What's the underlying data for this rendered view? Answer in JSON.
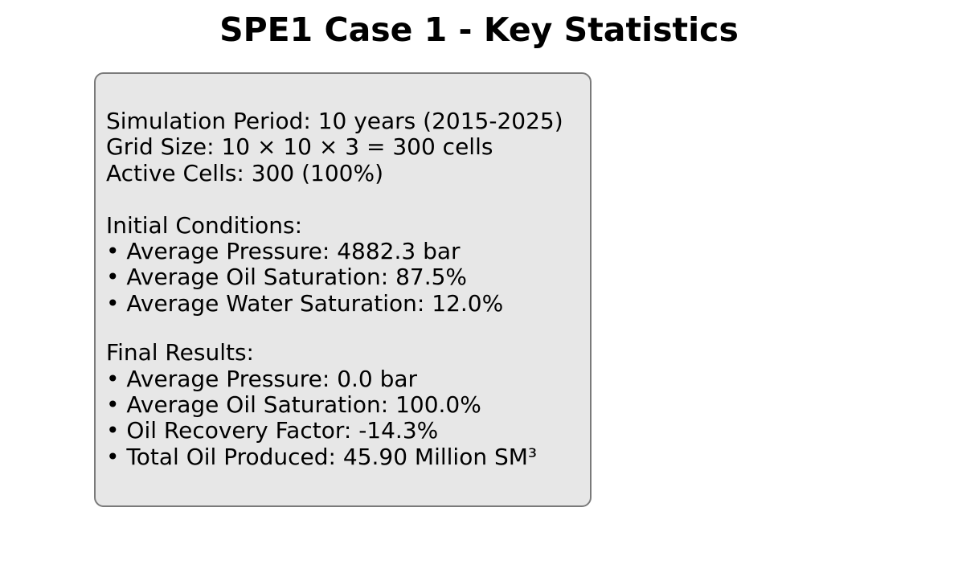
{
  "title": "SPE1 Case 1 - Key Statistics",
  "summary": {
    "simulation_period": "Simulation Period: 10 years (2015-2025)",
    "grid_size": "Grid Size: 10 × 10 × 3 = 300 cells",
    "active_cells": "Active Cells: 300 (100%)"
  },
  "initial_conditions": {
    "heading": "Initial Conditions:",
    "items": [
      "• Average Pressure: 4882.3 bar",
      "• Average Oil Saturation: 87.5%",
      "• Average Water Saturation: 12.0%"
    ]
  },
  "final_results": {
    "heading": "Final Results:",
    "items": [
      "• Average Pressure: 0.0 bar",
      "• Average Oil Saturation: 100.0%",
      "• Oil Recovery Factor: -14.3%",
      "• Total Oil Produced: 45.90 Million SM³"
    ]
  },
  "colors": {
    "box_background": "#e7e7e7",
    "box_border": "#7a7a7a",
    "text": "#000000"
  }
}
